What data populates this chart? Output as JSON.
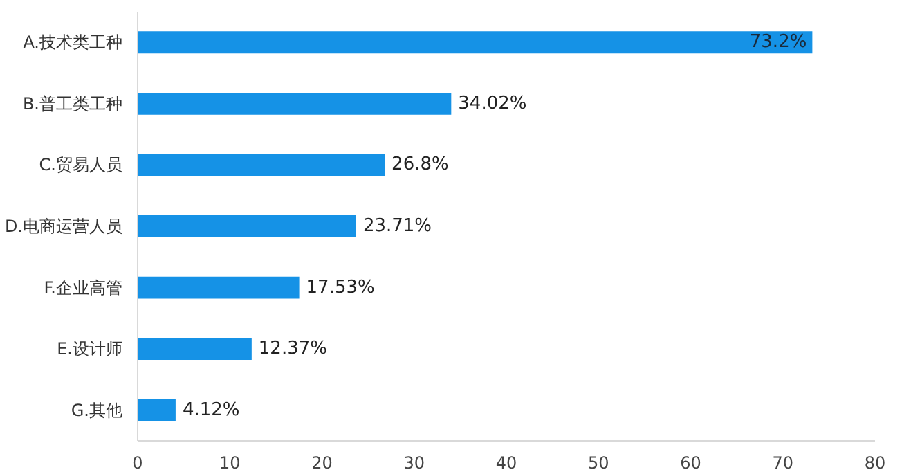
{
  "chart_data": {
    "type": "bar",
    "orientation": "horizontal",
    "categories": [
      "A.技术类工种",
      "B.普工类工种",
      "C.贸易人员",
      "D.电商运营人员",
      "F.企业高管",
      "E.设计师",
      "G.其他"
    ],
    "values": [
      73.2,
      34.02,
      26.8,
      23.71,
      17.53,
      12.37,
      4.12
    ],
    "value_labels": [
      "73.2%",
      "34.02%",
      "26.8%",
      "23.71%",
      "17.53%",
      "12.37%",
      "4.12%"
    ],
    "color": "#1592e6",
    "xlim": [
      0,
      80
    ],
    "xticks": [
      0,
      10,
      20,
      30,
      40,
      50,
      60,
      70,
      80
    ],
    "grid": false
  }
}
